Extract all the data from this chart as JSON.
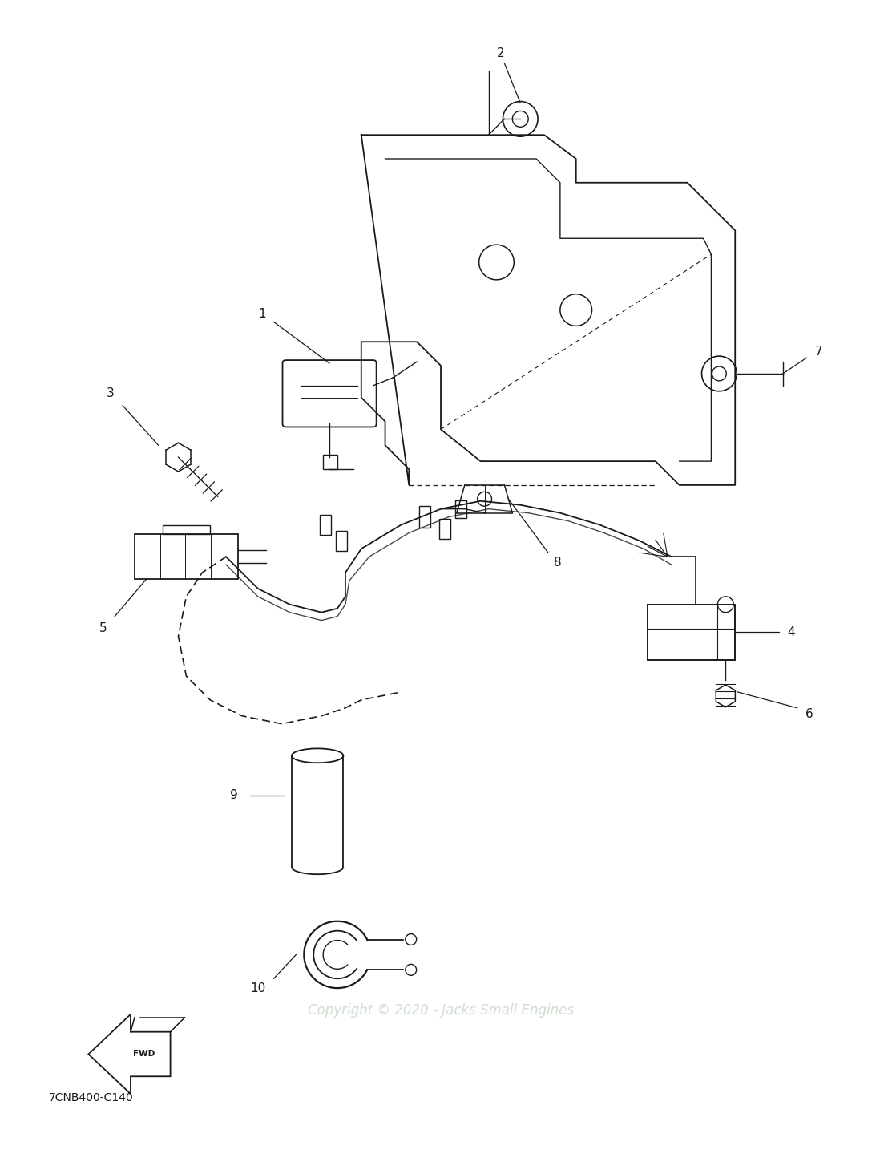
{
  "background_color": "#ffffff",
  "line_color": "#1a1a1a",
  "watermark_text": "Copyright © 2020 - Jacks Small Engines",
  "watermark_color": "#c8d8c8",
  "code_text": "7CNB400-C140",
  "figsize": [
    11.03,
    14.44
  ],
  "dpi": 100
}
